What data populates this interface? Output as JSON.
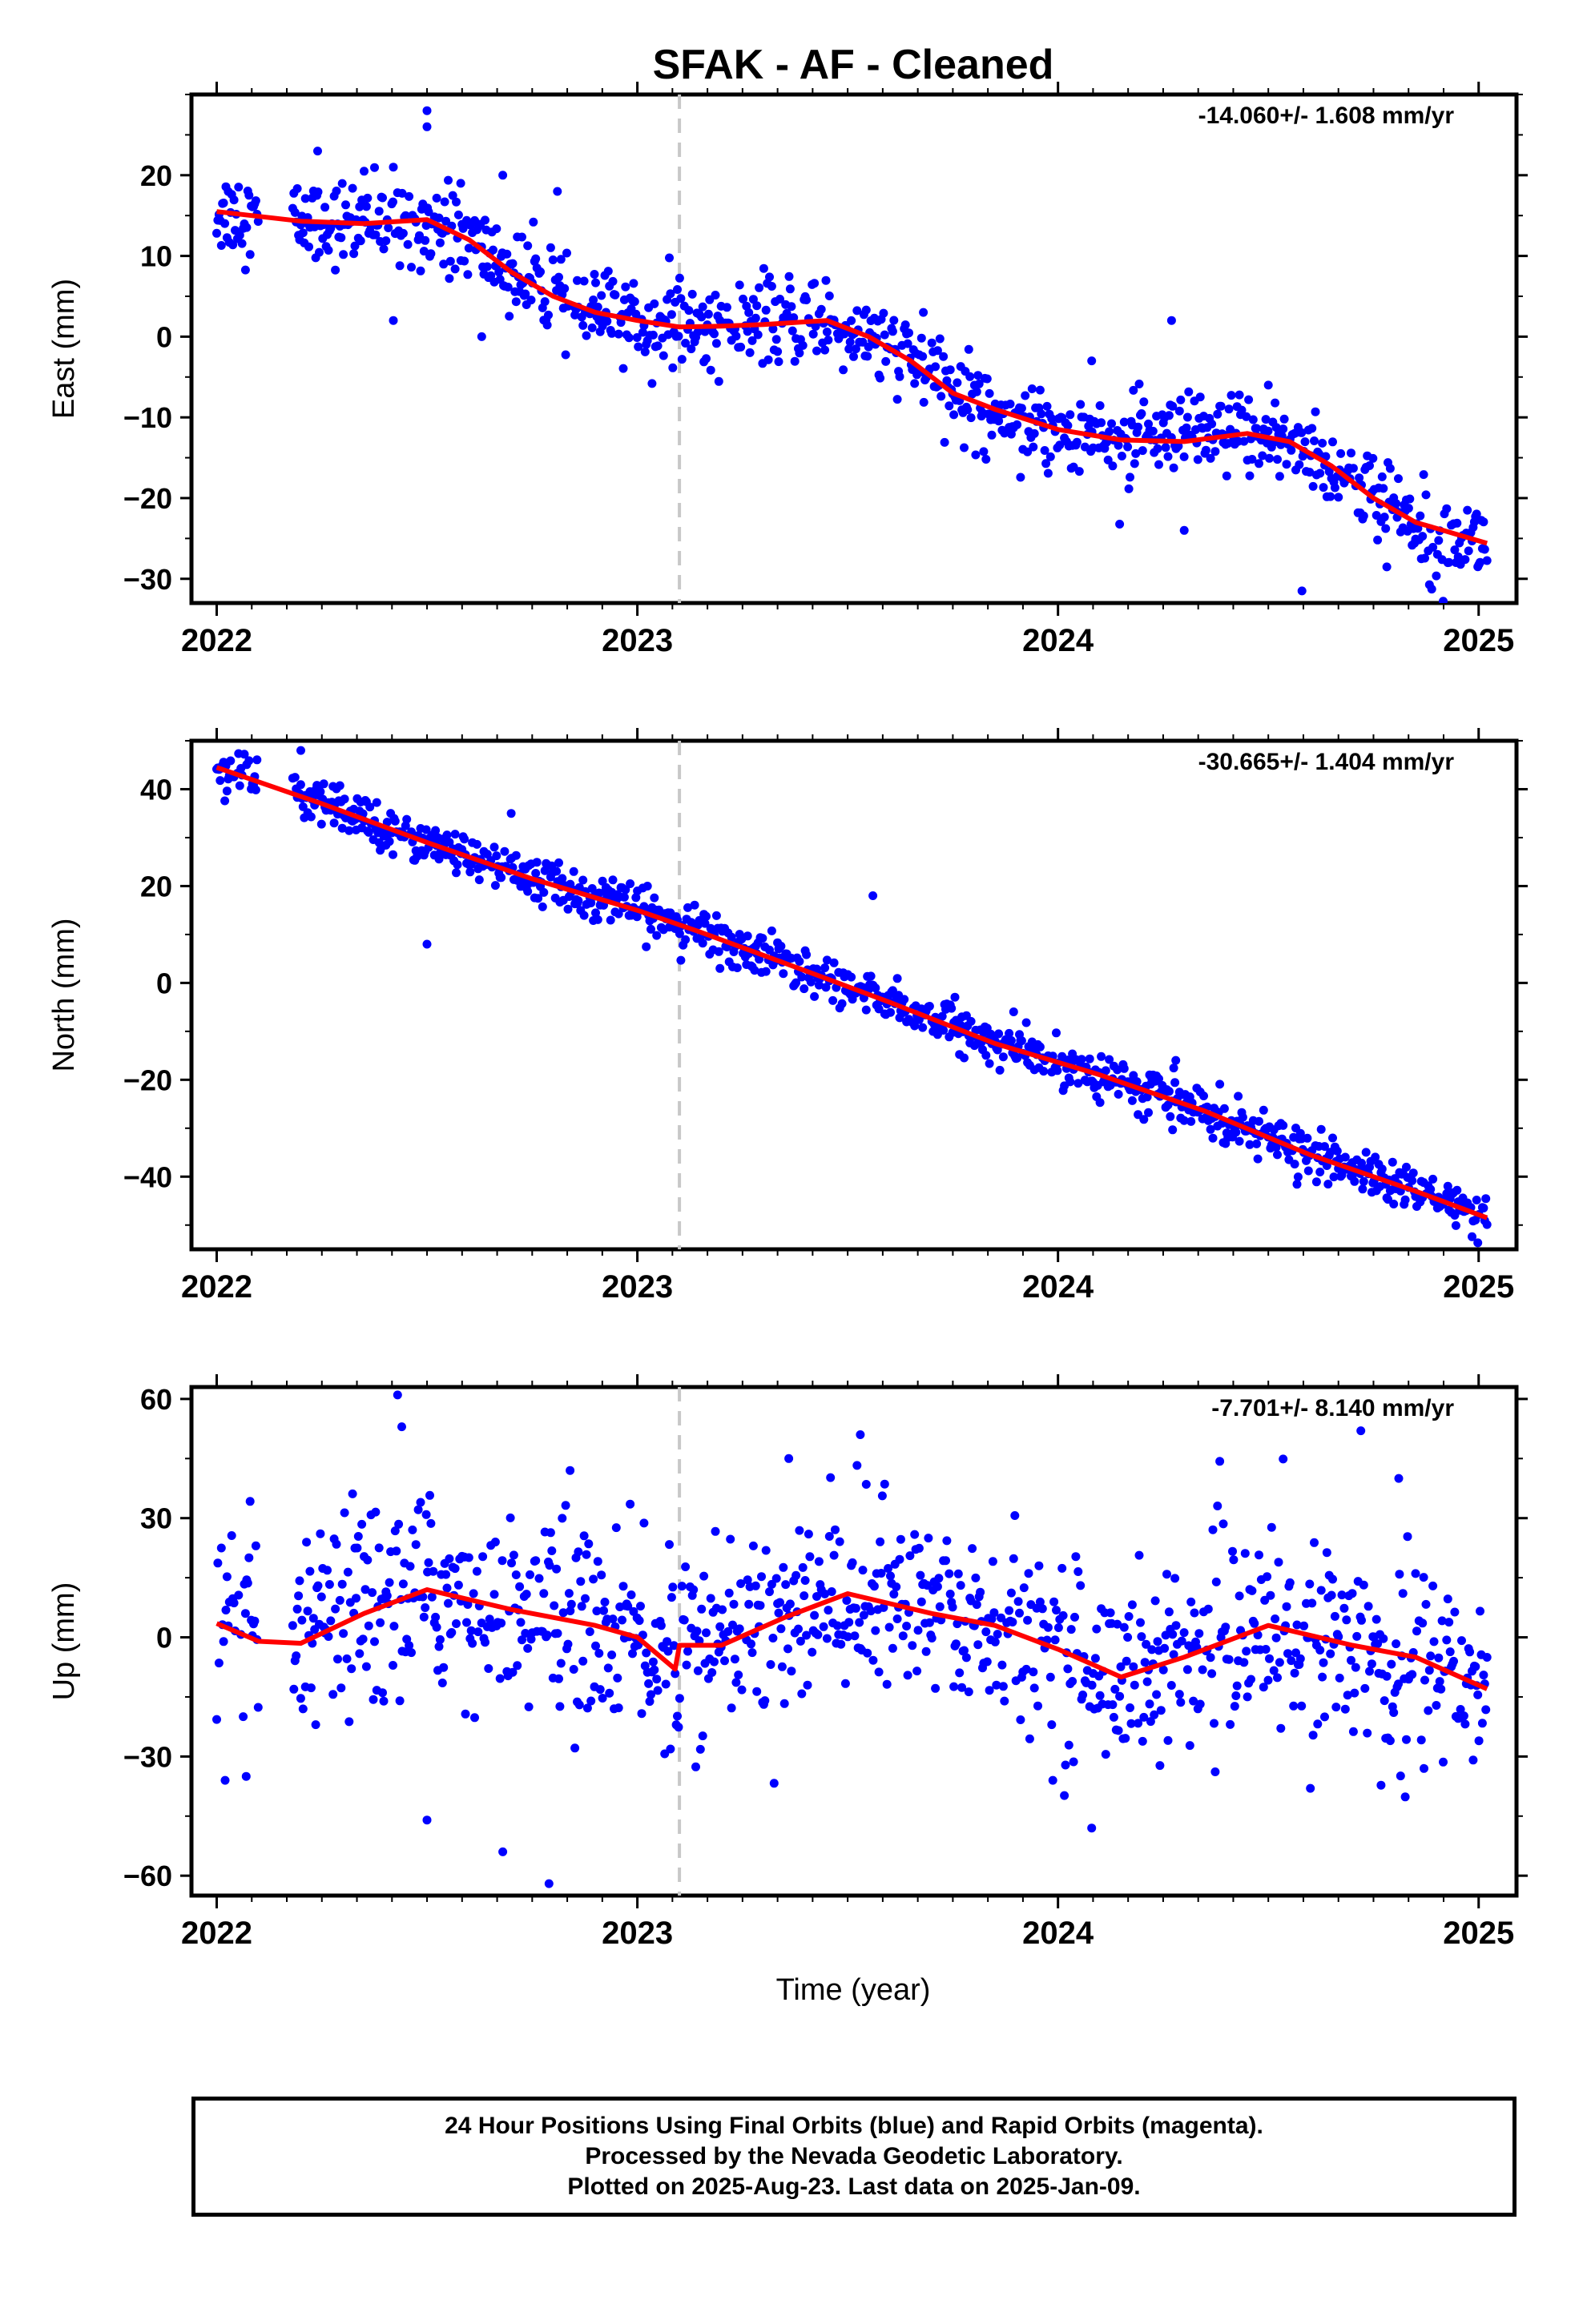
{
  "chart_data": [
    {
      "type": "scatter",
      "title": "SFAK  - AF - Cleaned",
      "ylabel": "East (mm)",
      "xlabel": "",
      "xlim": [
        1,
        32
      ],
      "xlim_years": [
        2021.94,
        2025.09
      ],
      "ylim": [
        -33,
        30
      ],
      "yticks": [
        -30,
        -20,
        -10,
        0,
        10,
        20
      ],
      "xticks": [
        2022,
        2023,
        2024,
        2025
      ],
      "rate_label": "-14.060+/- 1.608 mm/yr",
      "event_line_x": 2023.1,
      "grid": false,
      "series": [
        {
          "kind": "observations",
          "color": "#0000ff",
          "trend": [
            [
              2022.0,
              15.5
            ],
            [
              2022.2,
              14.3
            ],
            [
              2022.35,
              14.0
            ],
            [
              2022.5,
              14.5
            ],
            [
              2022.6,
              12.0
            ],
            [
              2022.7,
              8.0
            ],
            [
              2022.8,
              5.0
            ],
            [
              2022.9,
              3.0
            ],
            [
              2023.0,
              2.0
            ],
            [
              2023.1,
              1.2
            ],
            [
              2023.2,
              1.3
            ],
            [
              2023.3,
              1.5
            ],
            [
              2023.45,
              2.0
            ],
            [
              2023.55,
              0.0
            ],
            [
              2023.65,
              -3.0
            ],
            [
              2023.75,
              -7.0
            ],
            [
              2023.85,
              -9.0
            ],
            [
              2024.0,
              -11.5
            ],
            [
              2024.15,
              -12.8
            ],
            [
              2024.3,
              -13.0
            ],
            [
              2024.45,
              -12.0
            ],
            [
              2024.55,
              -13.0
            ],
            [
              2024.65,
              -16.0
            ],
            [
              2024.75,
              -20.0
            ],
            [
              2024.85,
              -23.0
            ],
            [
              2025.02,
              -25.6
            ]
          ],
          "scatter_sd": 2.6,
          "outliers": [
            [
              2022.5,
              28
            ],
            [
              2022.5,
              26
            ],
            [
              2022.42,
              21
            ],
            [
              2022.24,
              23
            ],
            [
              2022.58,
              19
            ],
            [
              2022.68,
              20
            ],
            [
              2022.81,
              18
            ],
            [
              2023.68,
              3
            ],
            [
              2024.08,
              -3
            ],
            [
              2024.27,
              2
            ],
            [
              2024.3,
              -24
            ],
            [
              2024.5,
              -6
            ],
            [
              2024.58,
              -31.5
            ],
            [
              2022.42,
              2
            ],
            [
              2022.63,
              0
            ]
          ]
        },
        {
          "kind": "fit",
          "color": "#ff0000"
        }
      ]
    },
    {
      "type": "scatter",
      "title": "",
      "ylabel": "North (mm)",
      "xlabel": "",
      "xlim_years": [
        2021.94,
        2025.09
      ],
      "ylim": [
        -55,
        50
      ],
      "yticks": [
        -40,
        -20,
        0,
        20,
        40
      ],
      "xticks": [
        2022,
        2023,
        2024,
        2025
      ],
      "rate_label": "-30.665+/- 1.404 mm/yr",
      "event_line_x": 2023.1,
      "grid": false,
      "series": [
        {
          "kind": "observations",
          "color": "#0000ff",
          "trend": [
            [
              2022.0,
              44.5
            ],
            [
              2022.25,
              37.0
            ],
            [
              2022.5,
              29.0
            ],
            [
              2022.75,
              21.5
            ],
            [
              2023.0,
              15.0
            ],
            [
              2023.15,
              10.5
            ],
            [
              2023.4,
              2.5
            ],
            [
              2023.6,
              -4.0
            ],
            [
              2023.85,
              -12.5
            ],
            [
              2024.1,
              -19.0
            ],
            [
              2024.35,
              -26.5
            ],
            [
              2024.6,
              -35.5
            ],
            [
              2024.85,
              -43.0
            ],
            [
              2025.02,
              -48.5
            ]
          ],
          "scatter_sd": 2.3,
          "outliers": [
            [
              2022.2,
              48
            ],
            [
              2022.5,
              8
            ],
            [
              2022.7,
              35
            ],
            [
              2023.56,
              18
            ],
            [
              2023.0,
              19
            ],
            [
              2024.28,
              -16
            ]
          ]
        },
        {
          "kind": "fit",
          "color": "#ff0000"
        }
      ]
    },
    {
      "type": "scatter",
      "title": "",
      "ylabel": "Up (mm)",
      "xlabel": "Time (year)",
      "xlim_years": [
        2021.94,
        2025.09
      ],
      "ylim": [
        -65,
        63
      ],
      "yticks": [
        -60,
        -30,
        0,
        30,
        60
      ],
      "xticks": [
        2022,
        2023,
        2024,
        2025
      ],
      "rate_label": "-7.701+/- 8.140 mm/yr",
      "event_line_x": 2023.1,
      "grid": false,
      "series": [
        {
          "kind": "observations",
          "color": "#0000ff",
          "trend": [
            [
              2022.0,
              3.5
            ],
            [
              2022.1,
              -1.0
            ],
            [
              2022.2,
              -1.5
            ],
            [
              2022.35,
              6.0
            ],
            [
              2022.5,
              12.0
            ],
            [
              2022.7,
              7.0
            ],
            [
              2022.9,
              3.0
            ],
            [
              2023.0,
              0.0
            ],
            [
              2023.09,
              -8.0
            ],
            [
              2023.1,
              -2.0
            ],
            [
              2023.2,
              -2.0
            ],
            [
              2023.35,
              5.0
            ],
            [
              2023.5,
              11.0
            ],
            [
              2023.7,
              6.0
            ],
            [
              2023.85,
              3.0
            ],
            [
              2024.0,
              -3.0
            ],
            [
              2024.15,
              -10.0
            ],
            [
              2024.3,
              -5.0
            ],
            [
              2024.5,
              3.0
            ],
            [
              2024.7,
              -2.0
            ],
            [
              2024.85,
              -5.0
            ],
            [
              2025.02,
              -13.0
            ]
          ],
          "scatter_sd": 12.0,
          "outliers": [
            [
              2022.43,
              61
            ],
            [
              2022.44,
              53
            ],
            [
              2022.5,
              -46
            ],
            [
              2022.68,
              -54
            ],
            [
              2022.79,
              -62
            ],
            [
              2022.02,
              -36
            ],
            [
              2022.07,
              -35
            ],
            [
              2023.36,
              45
            ],
            [
              2023.53,
              51
            ],
            [
              2024.08,
              -48
            ],
            [
              2024.72,
              52
            ],
            [
              2024.6,
              -38
            ],
            [
              2024.87,
              -33
            ],
            [
              2024.81,
              40
            ],
            [
              2022.84,
              42
            ]
          ]
        },
        {
          "kind": "fit",
          "color": "#ff0000"
        }
      ]
    }
  ],
  "footer": {
    "line1": "24 Hour Positions Using Final Orbits (blue) and Rapid Orbits (magenta).",
    "line2": "Processed by the Nevada Geodetic Laboratory.",
    "line3": "Plotted on 2025-Aug-23. Last data on 2025-Jan-09."
  }
}
